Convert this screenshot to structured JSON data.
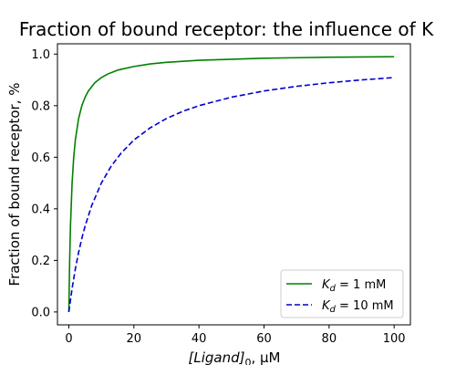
{
  "chart_data": {
    "type": "line",
    "title": "Fraction of bound receptor: the influence of K",
    "xlabel": "[Ligand]",
    "xlabel_sub": "0",
    "xlabel_suffix": ", µM",
    "ylabel": "Fraction of bound receptor, %",
    "xlim": [
      -3.5,
      105
    ],
    "ylim": [
      -0.05,
      1.04
    ],
    "xticks": [
      0,
      20,
      40,
      60,
      80,
      100
    ],
    "yticks": [
      0.0,
      0.2,
      0.4,
      0.6,
      0.8,
      1.0
    ],
    "xtick_labels": [
      "0",
      "20",
      "40",
      "60",
      "80",
      "100"
    ],
    "ytick_labels": [
      "0.0",
      "0.2",
      "0.4",
      "0.6",
      "0.8",
      "1.0"
    ],
    "grid": false,
    "legend_position": "lower-right",
    "series": [
      {
        "name": "K_d = 1 mM",
        "legend_main": "K",
        "legend_sub": "d",
        "legend_rest": " = 1 mM",
        "color": "#008000",
        "dash": "solid",
        "x": [
          0,
          0.25,
          0.5,
          1,
          1.5,
          2,
          3,
          4,
          5,
          6,
          8,
          10,
          12,
          15,
          20,
          25,
          30,
          40,
          50,
          60,
          70,
          80,
          90,
          100
        ],
        "y": [
          0.0,
          0.2,
          0.333,
          0.5,
          0.6,
          0.667,
          0.75,
          0.8,
          0.833,
          0.857,
          0.889,
          0.909,
          0.923,
          0.938,
          0.952,
          0.962,
          0.968,
          0.976,
          0.98,
          0.984,
          0.986,
          0.988,
          0.989,
          0.99
        ]
      },
      {
        "name": "K_d = 10 mM",
        "legend_main": "K",
        "legend_sub": "d",
        "legend_rest": " = 10 mM",
        "color": "#0000cc",
        "dash": "dashed",
        "x": [
          0,
          1,
          2,
          3,
          4,
          5,
          7,
          10,
          13,
          16,
          20,
          25,
          30,
          35,
          40,
          50,
          60,
          70,
          80,
          90,
          100
        ],
        "y": [
          0.0,
          0.091,
          0.167,
          0.231,
          0.286,
          0.333,
          0.412,
          0.5,
          0.565,
          0.615,
          0.667,
          0.714,
          0.75,
          0.778,
          0.8,
          0.833,
          0.857,
          0.875,
          0.889,
          0.9,
          0.909
        ]
      }
    ]
  }
}
